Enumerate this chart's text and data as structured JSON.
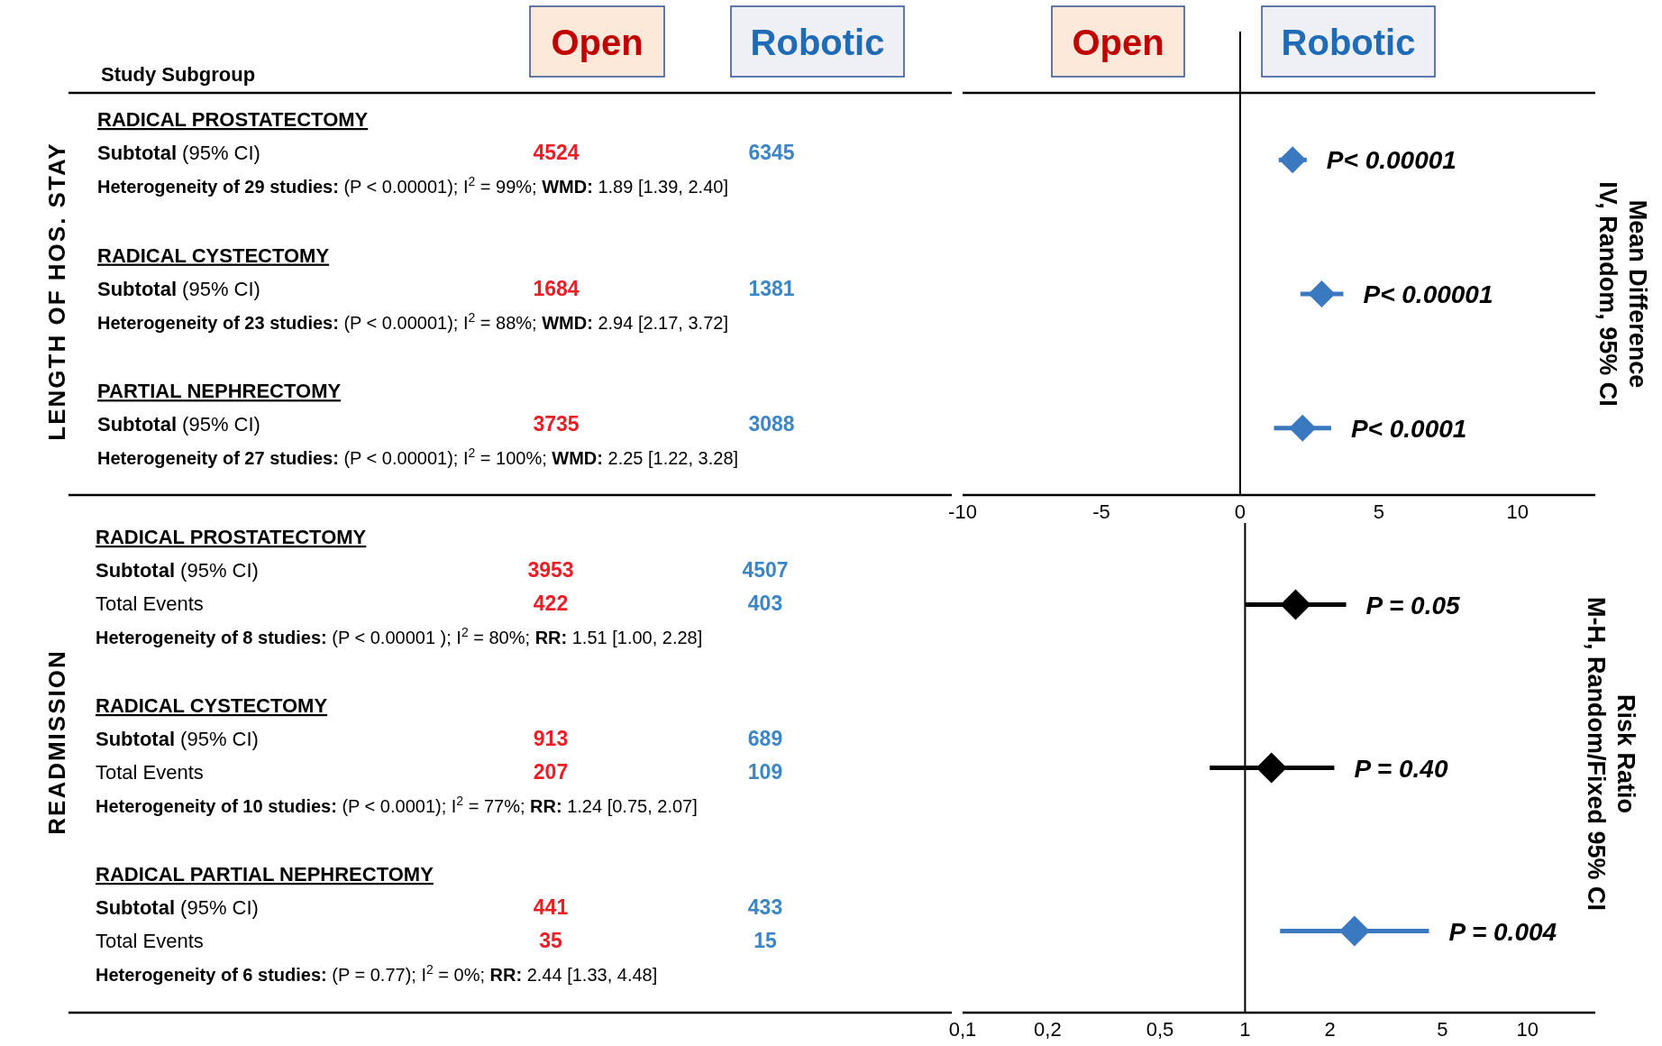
{
  "chart_data": [
    {
      "type": "scatter",
      "orientation": "horizontal",
      "marker": "diamond",
      "categories": [
        null,
        null,
        null
      ],
      "values": [
        1.89,
        2.94,
        2.25
      ],
      "errors": [
        [
          1.39,
          2.4
        ],
        [
          2.17,
          3.72
        ],
        [
          1.22,
          3.28
        ]
      ],
      "colors": [
        "#3a78c0",
        "#3a78c0",
        "#3a78c0"
      ],
      "xlim": [
        -10,
        12.7
      ],
      "xticks": [
        -10,
        -5,
        0,
        5,
        10
      ],
      "ref_lines": [
        {
          "axis": "x",
          "value": 0,
          "color": "#000000"
        }
      ],
      "annotations": [
        "Study Subgroup",
        "Open",
        "Robotic",
        "Open",
        "Robotic",
        "LENGTH OF HOS. STAY",
        "Mean Difference\nIV, Random, 95% CI",
        "RADICAL PROSTATECTOMY",
        "Subtotal (95% CI)",
        "4524",
        "6345",
        "Heterogeneity of 29 studies: (P < 0.00001); I$^{2}$ = 99%; WMD: 1.89 [1.39, 2.40]",
        "P< 0.00001",
        "RADICAL CYSTECTOMY",
        "Subtotal (95% CI)",
        "1684",
        "1381",
        "Heterogeneity of 23 studies: (P < 0.00001); I$^{2}$ = 88%; WMD: 2.94 [2.17, 3.72]",
        "P< 0.00001",
        "PARTIAL NEPHRECTOMY",
        "Subtotal (95% CI)",
        "3735",
        "3088",
        "Heterogeneity of 27 studies: (P < 0.00001); I$^{2}$ = 100%; WMD: 2.25 [1.22, 3.28]",
        "P< 0.0001"
      ]
    },
    {
      "type": "scatter",
      "orientation": "horizontal",
      "marker": "diamond",
      "log": "x",
      "categories": [
        null,
        null,
        null
      ],
      "values": [
        1.51,
        1.24,
        2.44
      ],
      "errors": [
        [
          1.0,
          2.28
        ],
        [
          0.75,
          2.07
        ],
        [
          1.33,
          4.48
        ]
      ],
      "colors": [
        "#000000",
        "#000000",
        "#3a78c0"
      ],
      "xlim": [
        0.1,
        17
      ],
      "xticks": [
        {
          "value": 0.1,
          "label": "0,1"
        },
        {
          "value": 0.2,
          "label": "0,2"
        },
        {
          "value": 0.5,
          "label": "0,5"
        },
        1,
        2,
        5,
        10
      ],
      "ref_lines": [
        {
          "axis": "x",
          "value": 1,
          "color": "#000000"
        }
      ],
      "annotations": [
        "READMISSION",
        "Risk Ratio\nM-H, Random/Fixed 95% CI",
        "RADICAL PROSTATECTOMY",
        "Subtotal (95% CI)",
        "3953",
        "4507",
        "Total Events",
        "422",
        "403",
        "Heterogeneity of 8 studies: (P < 0.00001 ); I$^{2}$ = 80%; RR: 1.51 [1.00, 2.28]",
        "P = 0.05",
        "RADICAL CYSTECTOMY",
        "Subtotal (95% CI)",
        "913",
        "689",
        "Total Events",
        "207",
        "109",
        "Heterogeneity of 10 studies: (P < 0.0001); I$^{2}$ = 77%; RR:  1.24 [0.75, 2.07]",
        "P = 0.40",
        "RADICAL PARTIAL NEPHRECTOMY",
        "Subtotal (95% CI)",
        "441",
        "433",
        "Total Events",
        "35",
        "15",
        "Heterogeneity of 6 studies: (P = 0.77); I$^{2}$ = 0%; RR:  2.44 [1.33, 4.48]",
        "P = 0.004"
      ]
    }
  ]
}
